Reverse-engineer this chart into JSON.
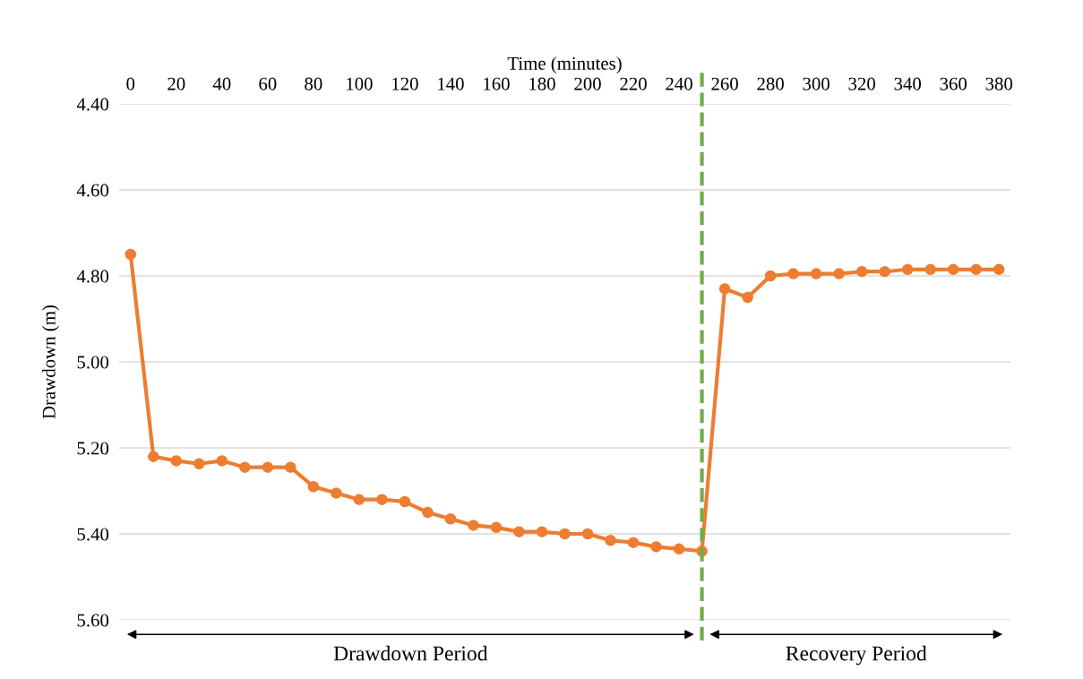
{
  "chart_data": {
    "type": "line",
    "xlabel": "Time (minutes)",
    "ylabel": "Drawdown (m)",
    "x": [
      0,
      10,
      20,
      30,
      40,
      50,
      60,
      70,
      80,
      90,
      100,
      110,
      120,
      130,
      140,
      150,
      160,
      170,
      180,
      190,
      200,
      210,
      220,
      230,
      240,
      250,
      260,
      270,
      280,
      290,
      300,
      310,
      320,
      330,
      340,
      350,
      360,
      370,
      380
    ],
    "series": [
      {
        "color": "#ed7d31",
        "values": [
          4.75,
          5.22,
          5.23,
          5.237,
          5.23,
          5.245,
          5.245,
          5.245,
          5.29,
          5.305,
          5.32,
          5.32,
          5.325,
          5.35,
          5.365,
          5.38,
          5.385,
          5.395,
          5.395,
          5.4,
          5.4,
          5.415,
          5.42,
          5.43,
          5.435,
          5.44,
          4.83,
          4.85,
          4.8,
          4.795,
          4.795,
          4.795,
          4.79,
          4.79,
          4.785,
          4.785,
          4.785,
          4.785,
          4.785
        ]
      }
    ],
    "xlim": [
      -5,
      385
    ],
    "xticks": [
      0,
      20,
      40,
      60,
      80,
      100,
      120,
      140,
      160,
      180,
      200,
      220,
      240,
      260,
      280,
      300,
      320,
      340,
      360,
      380
    ],
    "ylim": [
      5.6,
      4.4
    ],
    "yticks": [
      {
        "value": 4.4,
        "label": "4.40"
      },
      {
        "value": 4.6,
        "label": "4.60"
      },
      {
        "value": 4.8,
        "label": "4.80"
      },
      {
        "value": 5.0,
        "label": "5.00"
      },
      {
        "value": 5.2,
        "label": "5.20"
      },
      {
        "value": 5.4,
        "label": "5.40"
      },
      {
        "value": 5.6,
        "label": "5.60"
      }
    ],
    "grid": "y",
    "marker": "circle",
    "line_style": "solid",
    "ref_lines": [
      {
        "axis": "x",
        "value": 250,
        "color": "#70ad47",
        "line_style": "dashed"
      }
    ],
    "annotations": [
      "Drawdown Period",
      "Recovery Period"
    ]
  }
}
